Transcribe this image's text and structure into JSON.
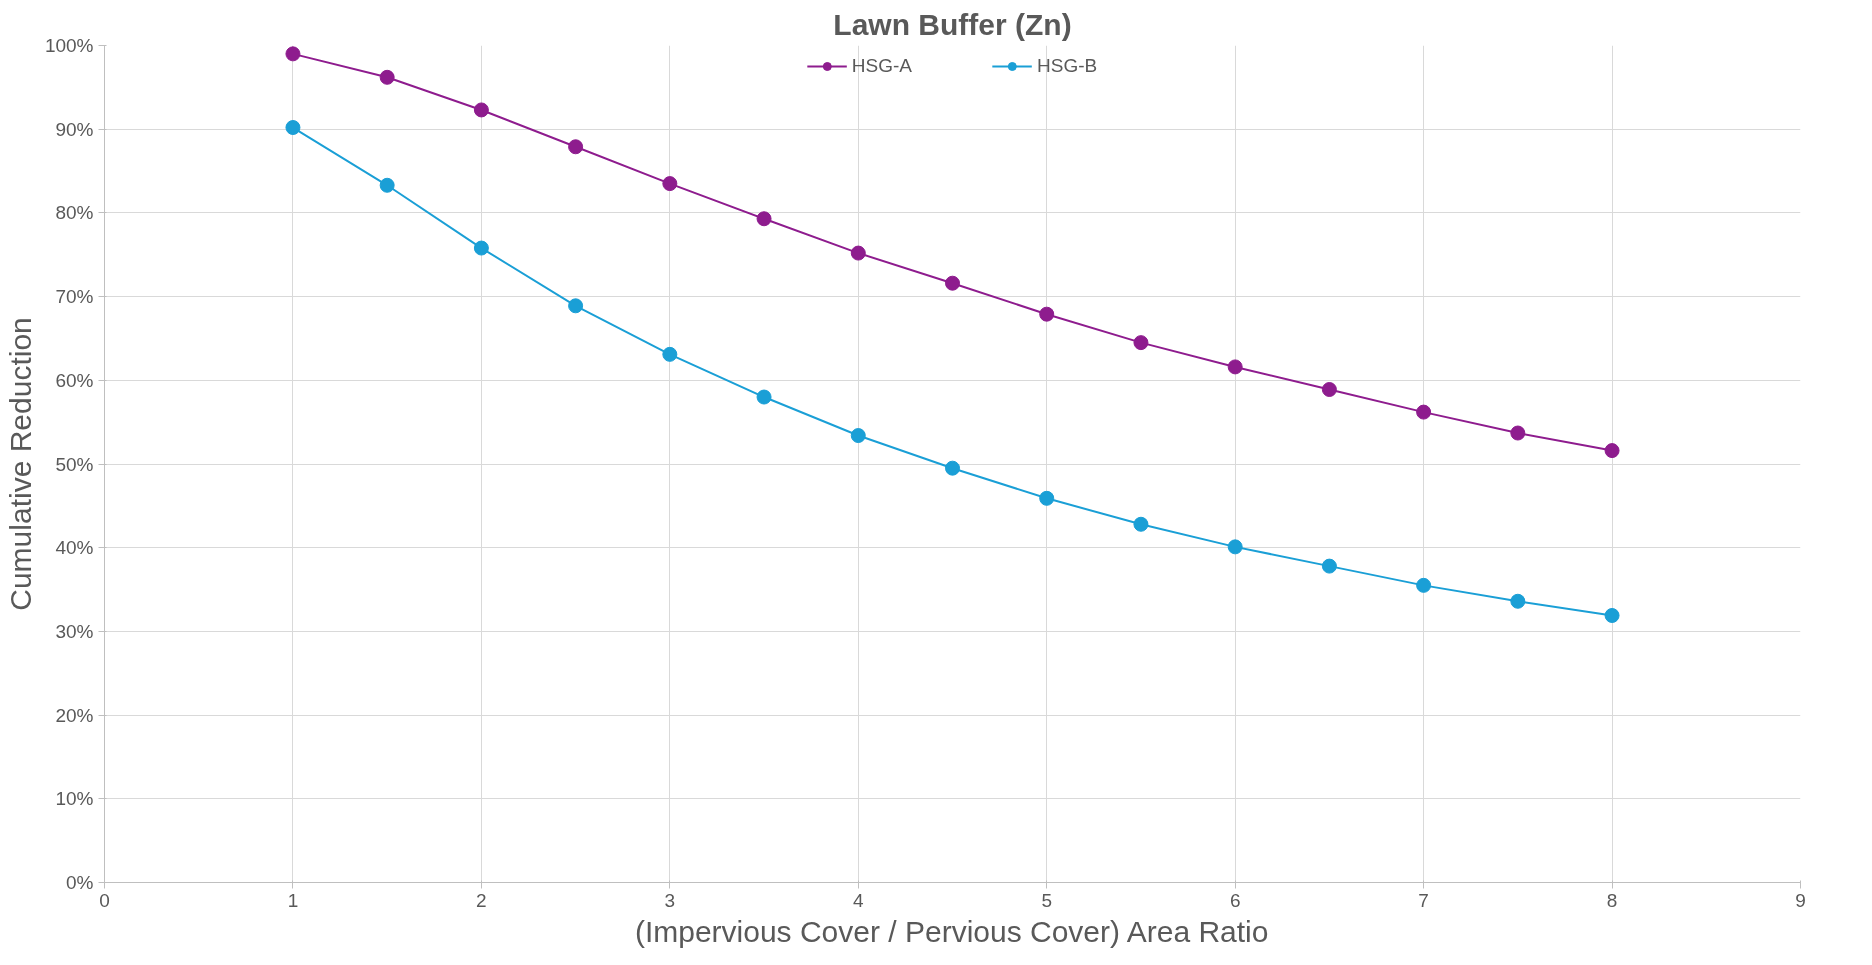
{
  "chart_data": {
    "type": "line",
    "title": "Lawn Buffer (Zn)",
    "xlabel": "(Impervious Cover / Pervious Cover) Area Ratio",
    "ylabel": "Cumulative Reduction",
    "x": [
      1,
      1.5,
      2,
      2.5,
      3,
      3.5,
      4,
      4.5,
      5,
      5.5,
      6,
      6.5,
      7,
      7.5,
      8
    ],
    "series": [
      {
        "name": "HSG-A",
        "color": "#8e1c8e",
        "values": [
          99,
          96.2,
          92.3,
          87.9,
          83.5,
          79.3,
          75.2,
          71.6,
          67.9,
          64.5,
          61.6,
          58.9,
          56.2,
          53.7,
          51.6
        ]
      },
      {
        "name": "HSG-B",
        "color": "#1a9fd6",
        "values": [
          90.2,
          83.3,
          75.8,
          68.9,
          63.1,
          58,
          53.4,
          49.5,
          45.9,
          42.8,
          40.1,
          37.8,
          35.5,
          33.6,
          31.9
        ]
      }
    ],
    "xlim": [
      0,
      9
    ],
    "xticks": [
      0,
      1,
      2,
      3,
      4,
      5,
      6,
      7,
      8,
      9
    ],
    "ylim": [
      0,
      100
    ],
    "yticks": [
      {
        "value": 0,
        "label": "0%"
      },
      {
        "value": 10,
        "label": "10%"
      },
      {
        "value": 20,
        "label": "20%"
      },
      {
        "value": 30,
        "label": "30%"
      },
      {
        "value": 40,
        "label": "40%"
      },
      {
        "value": 50,
        "label": "50%"
      },
      {
        "value": 60,
        "label": "60%"
      },
      {
        "value": 70,
        "label": "70%"
      },
      {
        "value": 80,
        "label": "80%"
      },
      {
        "value": 90,
        "label": "90%"
      },
      {
        "value": 100,
        "label": "100%"
      }
    ],
    "grid": true,
    "legend": "top",
    "marker": "circle",
    "line_style": "solid"
  }
}
